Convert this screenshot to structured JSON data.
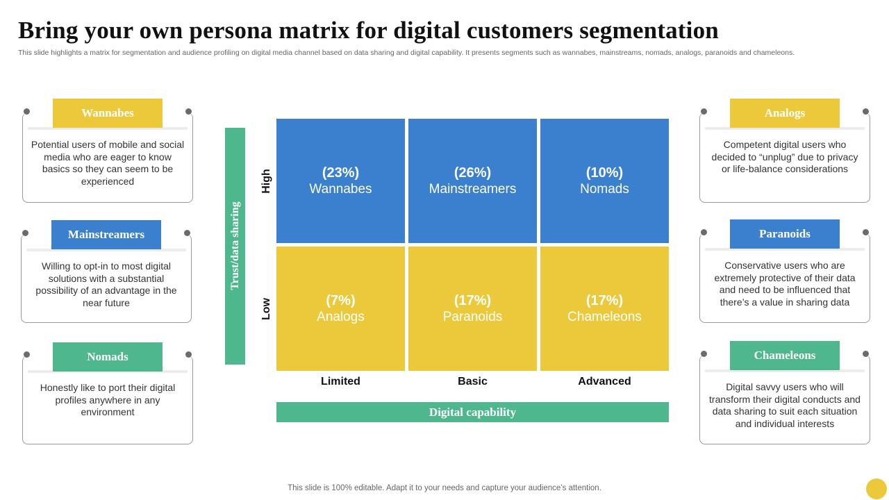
{
  "title": "Bring your own persona matrix for digital customers segmentation",
  "subtitle": "This slide highlights a matrix for segmentation and audience profiling on digital media channel based on data sharing and digital capability. It presents segments such as wannabes, mainstreams, nomads, analogs, paranoids and chameleons.",
  "left_cards": [
    {
      "label": "Wannabes",
      "text": "Potential users of mobile and social media who are eager to know basics so they can seem to be experienced",
      "color": "#ecc93b"
    },
    {
      "label": "Mainstreamers",
      "text": "Willing to opt-in to most digital solutions with a substantial possibility of an advantage in the near future",
      "color": "#3a80cf"
    },
    {
      "label": "Nomads",
      "text": "Honestly like to port their digital profiles anywhere in any environment",
      "color": "#4fb78d"
    }
  ],
  "right_cards": [
    {
      "label": "Analogs",
      "text": "Competent digital users who decided to “unplug” due to privacy or life-balance considerations",
      "color": "#ecc93b"
    },
    {
      "label": "Paranoids",
      "text": "Conservative users who are extremely protective of their data and need to be influenced that there’s a value in sharing data",
      "color": "#3a80cf"
    },
    {
      "label": "Chameleons",
      "text": "Digital savvy users who will transform their digital conducts and data sharing to suit each situation and individual interests",
      "color": "#4fb78d"
    }
  ],
  "matrix": {
    "y_axis_label": "Trust/data sharing",
    "x_axis_label": "Digital capability",
    "y_ticks": [
      "High",
      "Low"
    ],
    "x_ticks": [
      "Limited",
      "Basic",
      "Advanced"
    ],
    "cells": [
      {
        "pct": "(23%)",
        "name": "Wannabes",
        "row": "High",
        "col": "Limited"
      },
      {
        "pct": "(26%)",
        "name": "Mainstreamers",
        "row": "High",
        "col": "Basic"
      },
      {
        "pct": "(10%)",
        "name": "Nomads",
        "row": "High",
        "col": "Advanced"
      },
      {
        "pct": "(7%)",
        "name": "Analogs",
        "row": "Low",
        "col": "Limited"
      },
      {
        "pct": "(17%)",
        "name": "Paranoids",
        "row": "Low",
        "col": "Basic"
      },
      {
        "pct": "(17%)",
        "name": "Chameleons",
        "row": "Low",
        "col": "Advanced"
      }
    ],
    "colors": {
      "high": "#3a80cf",
      "low": "#ecc93b",
      "axis": "#4fb78d"
    }
  },
  "footer": "This slide is 100% editable. Adapt it to your needs and capture your audience’s attention."
}
